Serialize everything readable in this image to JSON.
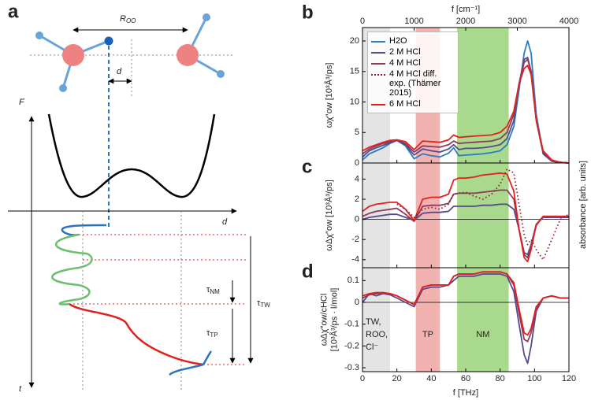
{
  "diagram": {
    "panel": "a",
    "r_main": "R",
    "r_sub": "OO",
    "d_top": "d",
    "f_axis": "F",
    "d_axis": "d",
    "t_axis": "t",
    "tau": "τ",
    "nm": "NM",
    "tp": "TP",
    "tw": "TW"
  },
  "regions": [
    {
      "label": [
        "TW,",
        "ROO,",
        "Cl⁻"
      ],
      "from": 0,
      "to": 16,
      "color": "#e4e4e4"
    },
    {
      "label": [
        "TP"
      ],
      "from": 31,
      "to": 45,
      "color": "#f2b2b0"
    },
    {
      "label": [
        "NM"
      ],
      "from": 55,
      "to": 85,
      "color": "#a9d98c"
    }
  ],
  "chart_data": [
    {
      "type": "line",
      "panel": "b",
      "ylabel": [
        "ωχ″ow [10³Å³/ps]"
      ],
      "x2label": "f [cm⁻¹]",
      "xlim": [
        0,
        120
      ],
      "ylim": [
        0,
        22.2
      ],
      "yticks": [
        0,
        5,
        10,
        15,
        20
      ],
      "x2lim": [
        0,
        4000
      ],
      "x2ticks": [
        0,
        1000,
        2000,
        3000,
        4000
      ],
      "x": [
        0,
        4,
        8,
        12,
        16,
        20,
        25,
        30,
        35,
        40,
        45,
        50,
        53,
        56,
        60,
        65,
        70,
        75,
        80,
        84,
        88,
        91,
        94,
        96,
        98,
        101,
        105,
        110,
        115,
        120
      ],
      "series": [
        {
          "name": "H2O",
          "color": "#2b7cc2",
          "values": [
            0.5,
            1.5,
            2,
            2.5,
            3.2,
            3.7,
            2.8,
            0.7,
            1.5,
            1.2,
            1.0,
            1.6,
            2.5,
            1.2,
            1.3,
            1.4,
            1.5,
            1.7,
            2.0,
            3,
            6,
            12,
            18,
            20,
            18,
            8,
            1.5,
            0.3,
            0.1,
            0
          ]
        },
        {
          "name": "2 M HCl",
          "color": "#574a8c",
          "values": [
            1,
            2,
            2.5,
            2.9,
            3.3,
            3.7,
            3,
            1.3,
            2.3,
            2.0,
            1.8,
            2.3,
            3.0,
            2.2,
            2.4,
            2.4,
            2.5,
            2.7,
            3.0,
            4,
            7,
            13,
            17,
            17.3,
            15,
            7,
            1.5,
            0.3,
            0.1,
            0
          ]
        },
        {
          "name": "4 M HCl",
          "color": "#8e3a5c",
          "values": [
            1.5,
            2.3,
            2.8,
            3.2,
            3.5,
            3.8,
            3.2,
            1.8,
            2.8,
            2.7,
            2.6,
            3,
            3.6,
            3.2,
            3.3,
            3.4,
            3.5,
            3.6,
            4.0,
            5,
            8,
            13,
            16.5,
            17,
            15,
            7,
            1.8,
            0.4,
            0.1,
            0
          ]
        },
        {
          "name": "6 M HCl",
          "color": "#e3211c",
          "values": [
            2,
            2.6,
            3,
            3.4,
            3.7,
            3.8,
            3.5,
            2.2,
            3.6,
            3.5,
            3.4,
            3.8,
            4.6,
            4.2,
            4.3,
            4.4,
            4.5,
            4.6,
            5.0,
            6,
            8.5,
            13,
            15.5,
            16,
            14.5,
            7,
            2,
            0.5,
            0.1,
            0
          ]
        }
      ]
    },
    {
      "type": "line",
      "panel": "c",
      "ylabel": [
        "ωΔχ″ow [10³Å³/ps]"
      ],
      "y2label": "absorbance [arb. units]",
      "xlim": [
        0,
        120
      ],
      "ylim": [
        -4.8,
        5.6
      ],
      "yticks": [
        -4,
        -2,
        0,
        2,
        4
      ],
      "x": [
        0,
        4,
        8,
        12,
        16,
        20,
        25,
        30,
        35,
        40,
        45,
        50,
        53,
        56,
        60,
        65,
        70,
        75,
        80,
        84,
        88,
        91,
        94,
        96,
        98,
        101,
        105,
        110,
        115,
        120
      ],
      "series": [
        {
          "name": "2 M HCl",
          "color": "#574a8c",
          "values": [
            0,
            0.2,
            0.3,
            0.4,
            0.5,
            0.5,
            0.2,
            -0.1,
            0.6,
            0.7,
            0.7,
            0.8,
            1.3,
            1.3,
            1.3,
            1.3,
            1.4,
            1.4,
            1.5,
            1.5,
            1.0,
            -1,
            -3.3,
            -3.5,
            -2.5,
            -0.5,
            0.2,
            0.2,
            0.2,
            0.2
          ]
        },
        {
          "name": "4 M HCl",
          "color": "#8e3a5c",
          "values": [
            0.3,
            0.6,
            0.8,
            0.9,
            1.0,
            1.1,
            0.5,
            -0.2,
            1.3,
            1.4,
            1.4,
            1.6,
            2.5,
            2.6,
            2.6,
            2.6,
            2.7,
            2.8,
            2.9,
            2.9,
            2.0,
            -1,
            -3.5,
            -3.8,
            -2.7,
            -0.6,
            0.3,
            0.3,
            0.3,
            0.3
          ]
        },
        {
          "name": "6 M HCl",
          "color": "#e3211c",
          "values": [
            0.8,
            1.3,
            1.5,
            1.6,
            1.7,
            1.7,
            1.0,
            -0.1,
            2.0,
            2.2,
            2.2,
            2.5,
            3.9,
            4.1,
            4.1,
            4.2,
            4.4,
            4.5,
            4.6,
            4.5,
            2.8,
            -1,
            -3.8,
            -4.2,
            -3.0,
            -0.5,
            0.3,
            0.3,
            0.3,
            0.3
          ]
        },
        {
          "name": "4 M HCl diff. exp. (Thämer 2015)",
          "color": "#8b1f3f",
          "dotted": true,
          "values": [
            null,
            null,
            null,
            null,
            null,
            1.5,
            1.0,
            0.2,
            1.0,
            1.2,
            1.0,
            1.5,
            2.5,
            2.6,
            2.7,
            2.3,
            2.0,
            2.5,
            3.5,
            5.0,
            4.6,
            1.5,
            -1.5,
            -2.5,
            -2.0,
            -3.0,
            -4.0,
            -2.0,
            0,
            0.5
          ]
        }
      ]
    },
    {
      "type": "line",
      "panel": "d",
      "ylabel": [
        "ωΔχ″ow/cHCl",
        "[10³Å³/ps · l/mol]"
      ],
      "xlabel": "f [THz]",
      "xlim": [
        0,
        120
      ],
      "xticks": [
        0,
        20,
        40,
        60,
        80,
        100,
        120
      ],
      "ylim": [
        -0.318,
        0.159
      ],
      "yticks": [
        -0.3,
        -0.2,
        -0.1,
        0,
        0.1
      ],
      "x": [
        0,
        4,
        8,
        12,
        16,
        20,
        25,
        30,
        35,
        40,
        45,
        50,
        53,
        56,
        60,
        65,
        70,
        75,
        80,
        84,
        88,
        91,
        94,
        96,
        98,
        101,
        105,
        110,
        115,
        120
      ],
      "series": [
        {
          "name": "2 M HCl",
          "color": "#574a8c",
          "values": [
            0,
            0.04,
            0.03,
            0.04,
            0.035,
            0.02,
            0,
            -0.02,
            0.06,
            0.07,
            0.07,
            0.08,
            0.1,
            0.12,
            0.12,
            0.12,
            0.13,
            0.13,
            0.13,
            0.12,
            0.05,
            -0.1,
            -0.24,
            -0.28,
            -0.2,
            -0.04,
            0.02,
            0.03,
            0.02,
            0.02
          ]
        },
        {
          "name": "4 M HCl",
          "color": "#8e3a5c",
          "values": [
            0.02,
            0.035,
            0.04,
            0.04,
            0.04,
            0.03,
            0.01,
            -0.01,
            0.07,
            0.08,
            0.08,
            0.08,
            0.12,
            0.13,
            0.13,
            0.13,
            0.14,
            0.14,
            0.14,
            0.13,
            0.08,
            -0.05,
            -0.17,
            -0.18,
            -0.14,
            -0.03,
            0.02,
            0.03,
            0.02,
            0.02
          ]
        },
        {
          "name": "6 M HCl",
          "color": "#e3211c",
          "values": [
            0.03,
            0.04,
            0.045,
            0.045,
            0.04,
            0.03,
            0.01,
            -0.01,
            0.07,
            0.08,
            0.08,
            0.08,
            0.12,
            0.13,
            0.13,
            0.13,
            0.14,
            0.14,
            0.14,
            0.13,
            0.09,
            -0.03,
            -0.14,
            -0.15,
            -0.12,
            -0.02,
            0.02,
            0.03,
            0.02,
            0.02
          ]
        }
      ]
    }
  ]
}
